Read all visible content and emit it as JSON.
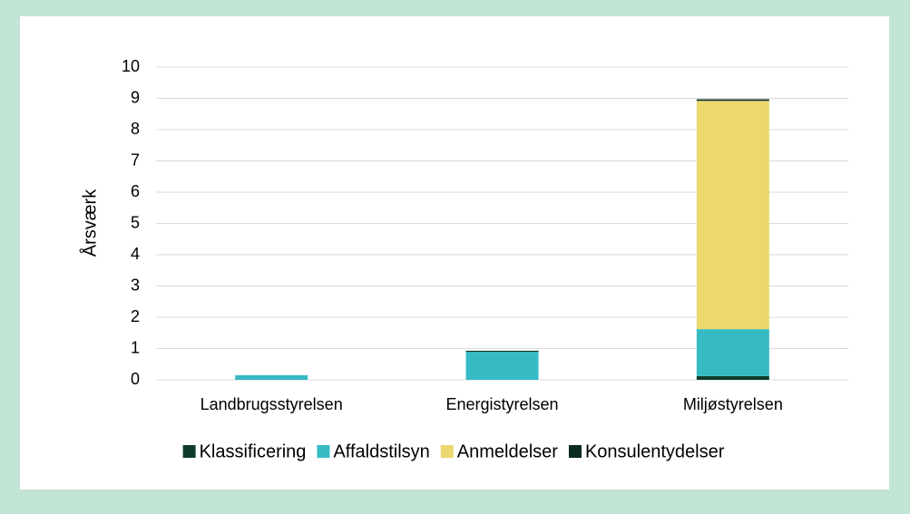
{
  "chart_data": {
    "type": "stacked_bar",
    "y_label": "Årsværk",
    "categories": [
      "Landbrugsstyrelsen",
      "Energistyrelsen",
      "Miljøstyrelsen"
    ],
    "series": [
      {
        "name": "Klassificering",
        "color": "#0e3b2d",
        "values": [
          0,
          0,
          0.12
        ]
      },
      {
        "name": "Affaldstilsyn",
        "color": "#36bac4",
        "values": [
          0.15,
          0.9,
          1.5
        ]
      },
      {
        "name": "Anmeldelser",
        "color": "#ebd86e",
        "values": [
          0,
          0,
          7.3
        ]
      },
      {
        "name": "Konsulentydelser",
        "color": "#0a2a20",
        "values": [
          0,
          0.03,
          0.05
        ]
      }
    ],
    "ylim": [
      0,
      10
    ],
    "yticks": [
      0,
      1,
      2,
      3,
      4,
      5,
      6,
      7,
      8,
      9,
      10
    ],
    "grid": true,
    "legend": "bottom"
  }
}
